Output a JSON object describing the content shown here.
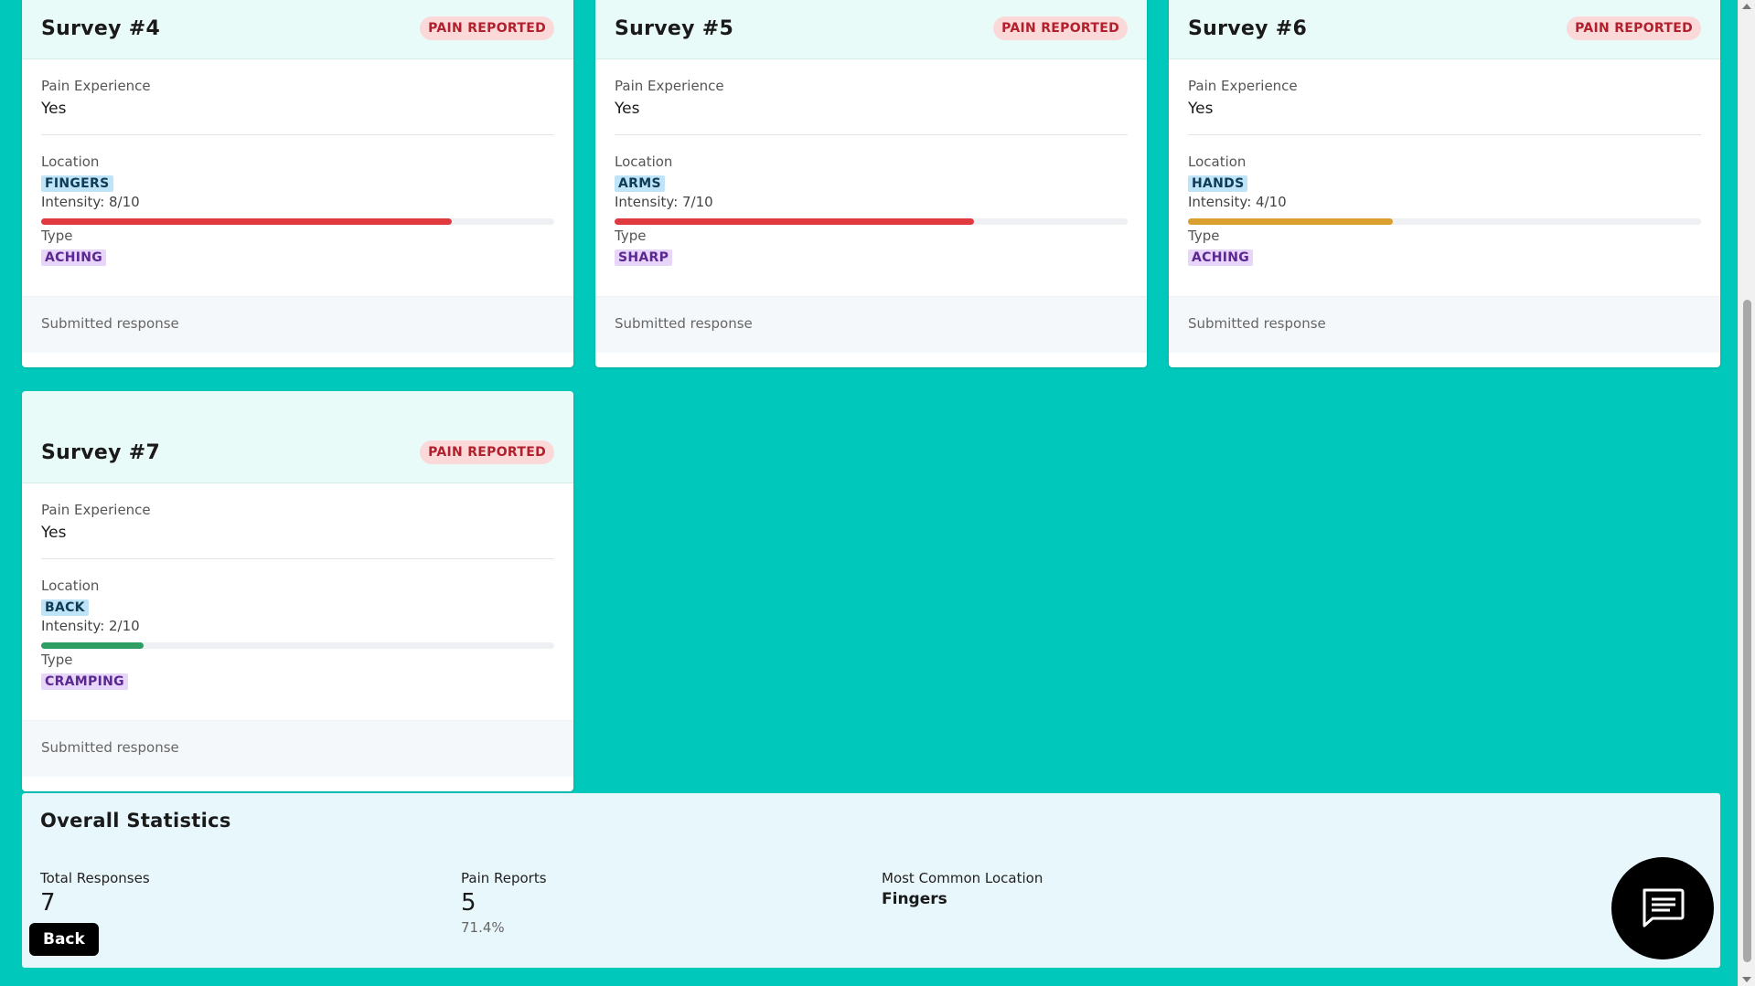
{
  "surveys": [
    {
      "title": "Survey #4",
      "badge": "PAIN REPORTED",
      "pain_label": "Pain Experience",
      "pain_value": "Yes",
      "location_label": "Location",
      "location": "FINGERS",
      "intensity_text": "Intensity: 8/10",
      "intensity": 8,
      "intensity_color": "#e03a3e",
      "type_label": "Type",
      "type": "ACHING",
      "footer": "Submitted response"
    },
    {
      "title": "Survey #5",
      "badge": "PAIN REPORTED",
      "pain_label": "Pain Experience",
      "pain_value": "Yes",
      "location_label": "Location",
      "location": "ARMS",
      "intensity_text": "Intensity: 7/10",
      "intensity": 7,
      "intensity_color": "#e03a3e",
      "type_label": "Type",
      "type": "SHARP",
      "footer": "Submitted response"
    },
    {
      "title": "Survey #6",
      "badge": "PAIN REPORTED",
      "pain_label": "Pain Experience",
      "pain_value": "Yes",
      "location_label": "Location",
      "location": "HANDS",
      "intensity_text": "Intensity: 4/10",
      "intensity": 4,
      "intensity_color": "#d9a030",
      "type_label": "Type",
      "type": "ACHING",
      "footer": "Submitted response"
    },
    {
      "title": "Survey #7",
      "badge": "PAIN REPORTED",
      "pain_label": "Pain Experience",
      "pain_value": "Yes",
      "location_label": "Location",
      "location": "BACK",
      "intensity_text": "Intensity: 2/10",
      "intensity": 2,
      "intensity_color": "#2e9e62",
      "type_label": "Type",
      "type": "CRAMPING",
      "footer": "Submitted response"
    }
  ],
  "stats": {
    "title": "Overall Statistics",
    "total_label": "Total Responses",
    "total_value": "7",
    "pain_label": "Pain Reports",
    "pain_value": "5",
    "pain_percent": "71.4%",
    "common_label": "Most Common Location",
    "common_value": "Fingers"
  },
  "back_label": "Back",
  "colors": {
    "background": "#00c9bb",
    "badge_bg": "#fcd9d9",
    "badge_text": "#b1202c"
  },
  "chat_icon": "chat-icon"
}
